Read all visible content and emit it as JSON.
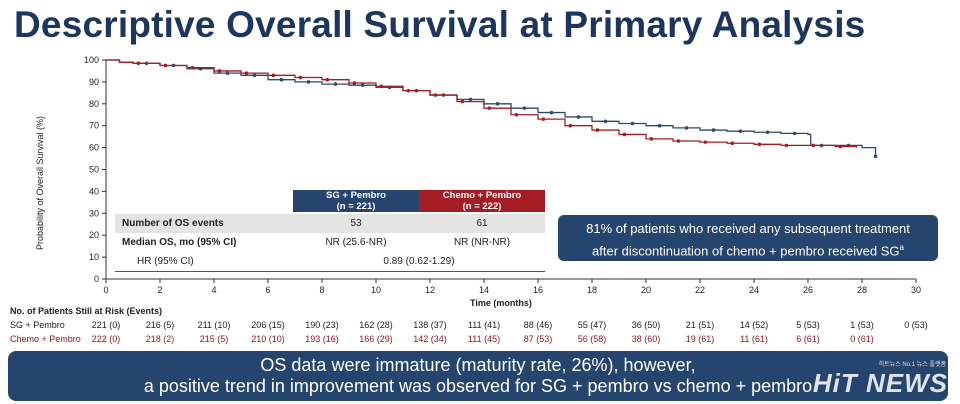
{
  "page_title": "Descriptive Overall Survival at Primary Analysis",
  "chart_data": {
    "type": "line",
    "title": "Descriptive Overall Survival at Primary Analysis",
    "xlabel": "Time (months)",
    "ylabel": "Probability of Overall Survival (%)",
    "xlim": [
      0,
      30
    ],
    "ylim": [
      0,
      100
    ],
    "xticks": [
      0,
      2,
      4,
      6,
      8,
      10,
      12,
      14,
      16,
      18,
      20,
      22,
      24,
      26,
      28,
      30
    ],
    "yticks": [
      0,
      10,
      20,
      30,
      40,
      50,
      60,
      70,
      80,
      90,
      100
    ],
    "grid": false,
    "series": [
      {
        "name": "SG + Pembro",
        "color": "#2f4a6b",
        "points": [
          [
            0,
            100
          ],
          [
            0.5,
            99
          ],
          [
            1,
            98.5
          ],
          [
            2,
            97.5
          ],
          [
            3,
            96
          ],
          [
            4,
            94
          ],
          [
            5,
            93
          ],
          [
            6,
            91
          ],
          [
            7,
            90
          ],
          [
            8,
            89
          ],
          [
            9,
            88.5
          ],
          [
            10,
            87.5
          ],
          [
            11,
            86
          ],
          [
            12,
            84
          ],
          [
            13,
            82
          ],
          [
            14,
            80
          ],
          [
            15,
            78
          ],
          [
            16,
            76
          ],
          [
            17,
            74
          ],
          [
            18,
            72
          ],
          [
            19,
            71
          ],
          [
            20,
            70
          ],
          [
            21,
            69
          ],
          [
            22,
            68
          ],
          [
            23,
            67.5
          ],
          [
            24,
            67
          ],
          [
            25,
            66.5
          ],
          [
            26,
            66
          ],
          [
            26.1,
            61
          ],
          [
            27,
            61
          ],
          [
            28,
            60
          ],
          [
            28.5,
            56
          ]
        ],
        "censor_x": [
          1.5,
          2.5,
          3.5,
          4.5,
          5.5,
          6.5,
          7.5,
          8.5,
          9.5,
          10.5,
          11.5,
          12.5,
          13.5,
          14.5,
          15.5,
          16.5,
          17.5,
          18.5,
          19.5,
          20.5,
          21.5,
          22.5,
          23.5,
          24.5,
          25.5,
          26.5,
          27.5,
          28.5
        ]
      },
      {
        "name": "Chemo + Pembro",
        "color": "#a51c24",
        "points": [
          [
            0,
            100
          ],
          [
            0.5,
            99
          ],
          [
            1,
            98.5
          ],
          [
            2,
            97.5
          ],
          [
            3,
            96.5
          ],
          [
            4,
            95
          ],
          [
            5,
            94
          ],
          [
            6,
            93
          ],
          [
            7,
            92
          ],
          [
            8,
            91
          ],
          [
            9,
            89.5
          ],
          [
            10,
            88
          ],
          [
            11,
            86
          ],
          [
            12,
            84
          ],
          [
            13,
            81
          ],
          [
            14,
            78
          ],
          [
            15,
            75
          ],
          [
            16,
            73
          ],
          [
            17,
            70
          ],
          [
            18,
            68
          ],
          [
            19,
            66
          ],
          [
            20,
            64
          ],
          [
            21,
            63
          ],
          [
            22,
            62.5
          ],
          [
            23,
            62
          ],
          [
            24,
            61.5
          ],
          [
            25,
            61
          ],
          [
            26,
            61
          ],
          [
            27,
            60.5
          ],
          [
            27.8,
            60
          ]
        ],
        "censor_x": [
          1.2,
          2.2,
          3.2,
          4.2,
          5.2,
          6.2,
          7.2,
          8.2,
          9.2,
          10.2,
          11.2,
          12.2,
          13.2,
          14.2,
          15.2,
          16.2,
          17.2,
          18.2,
          19.2,
          20.2,
          21.2,
          22.2,
          23.2,
          24.2,
          25.2,
          26.2,
          27.2
        ]
      }
    ]
  },
  "summary_table": {
    "col1_header": "SG + Pembro\n(n = 221)",
    "col2_header": "Chemo + Pembro\n(n = 222)",
    "rows": {
      "events": {
        "label": "Number of OS events",
        "sg": "53",
        "chemo": "61"
      },
      "median": {
        "label": "Median OS, mo (95% CI)",
        "sg": "NR (25.6-NR)",
        "chemo": "NR (NR-NR)"
      },
      "hr": {
        "label": "HR (95% CI)",
        "value": "0.89 (0.62-1.29)"
      }
    }
  },
  "callout": {
    "line1": "81% of patients who received any subsequent treatment",
    "line2": "after discontinuation of chemo + pembro received SG",
    "footnote_marker": "a"
  },
  "risk_table": {
    "title": "No. of Patients Still at Risk (Events)",
    "sg": {
      "label": "SG + Pembro",
      "values": [
        "221 (0)",
        "216 (5)",
        "211 (10)",
        "206 (15)",
        "190 (23)",
        "162 (28)",
        "138 (37)",
        "111 (41)",
        "88 (46)",
        "55 (47)",
        "36 (50)",
        "21 (51)",
        "14 (52)",
        "5 (53)",
        "1 (53)",
        "0 (53)"
      ]
    },
    "chemo": {
      "label": "Chemo + Pembro",
      "values": [
        "222 (0)",
        "218 (2)",
        "215 (5)",
        "210 (10)",
        "193 (16)",
        "166 (29)",
        "142 (34)",
        "111 (45)",
        "87 (53)",
        "56 (58)",
        "38 (60)",
        "19 (61)",
        "11 (61)",
        "6 (61)",
        "0 (61)",
        ""
      ]
    }
  },
  "banner": {
    "line1": "OS data were immature (maturity rate, 26%), however,",
    "line2": "a positive trend in improvement was observed for SG + pembro vs chemo + pembro"
  },
  "watermark": {
    "brand": "HiT NEWS",
    "sub": "히트뉴스 No.1 뉴스 플랫폼"
  }
}
